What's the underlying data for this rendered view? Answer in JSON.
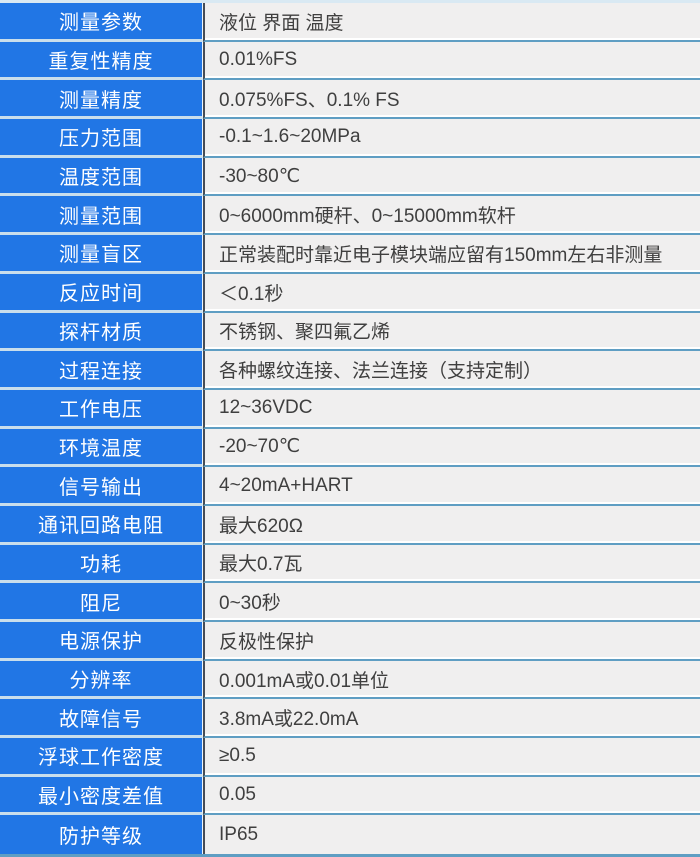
{
  "table": {
    "rows": [
      {
        "label": "测量参数",
        "value": "液位 界面 温度"
      },
      {
        "label": "重复性精度",
        "value": "0.01%FS"
      },
      {
        "label": "测量精度",
        "value": "0.075%FS、0.1% FS"
      },
      {
        "label": "压力范围",
        "value": "-0.1~1.6~20MPa"
      },
      {
        "label": "温度范围",
        "value": "-30~80℃"
      },
      {
        "label": "测量范围",
        "value": "0~6000mm硬杆、0~15000mm软杆"
      },
      {
        "label": "测量盲区",
        "value": "正常装配时靠近电子模块端应留有150mm左右非测量"
      },
      {
        "label": "反应时间",
        "value": "＜0.1秒"
      },
      {
        "label": "探杆材质",
        "value": "不锈钢、聚四氟乙烯"
      },
      {
        "label": "过程连接",
        "value": "各种螺纹连接、法兰连接（支持定制）"
      },
      {
        "label": "工作电压",
        "value": "12~36VDC"
      },
      {
        "label": "环境温度",
        "value": "-20~70℃"
      },
      {
        "label": "信号输出",
        "value": "4~20mA+HART"
      },
      {
        "label": "通讯回路电阻",
        "value": "最大620Ω"
      },
      {
        "label": "功耗",
        "value": "最大0.7瓦"
      },
      {
        "label": "阻尼",
        "value": "0~30秒"
      },
      {
        "label": "电源保护",
        "value": "反极性保护"
      },
      {
        "label": "分辨率",
        "value": "0.001mA或0.01单位"
      },
      {
        "label": "故障信号",
        "value": "3.8mA或22.0mA"
      },
      {
        "label": "浮球工作密度",
        "value": "≥0.5"
      },
      {
        "label": "最小密度差值",
        "value": "0.05"
      },
      {
        "label": "防护等级",
        "value": "IP65"
      }
    ]
  },
  "colors": {
    "accent_blue": "#2176e5",
    "value_bg": "#f0efef",
    "separator_blue": "#5f9ec3",
    "separator_light": "#c9deec",
    "divider_dark": "#454c56",
    "value_text": "#3f3f3f",
    "label_text": "#ffffff"
  }
}
